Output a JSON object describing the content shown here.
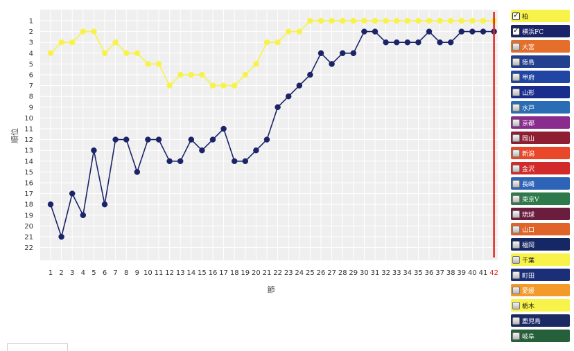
{
  "chart_data": {
    "type": "line",
    "ylabel": "順位",
    "xlabel": "節",
    "x": [
      1,
      2,
      3,
      4,
      5,
      6,
      7,
      8,
      9,
      10,
      11,
      12,
      13,
      14,
      15,
      16,
      17,
      18,
      19,
      20,
      21,
      22,
      23,
      24,
      25,
      26,
      27,
      28,
      29,
      30,
      31,
      32,
      33,
      34,
      35,
      36,
      37,
      38,
      39,
      40,
      41,
      42
    ],
    "ylim": [
      1,
      22
    ],
    "y_inverted": true,
    "current_round": 42,
    "grid": true,
    "series": [
      {
        "name": "柏",
        "color": "#f7f34a",
        "values": [
          4,
          3,
          3,
          2,
          2,
          4,
          3,
          4,
          4,
          5,
          5,
          7,
          6,
          6,
          6,
          7,
          7,
          7,
          6,
          5,
          3,
          3,
          2,
          2,
          1,
          1,
          1,
          1,
          1,
          1,
          1,
          1,
          1,
          1,
          1,
          1,
          1,
          1,
          1,
          1,
          1,
          1
        ]
      },
      {
        "name": "横浜FC",
        "color": "#1b2468",
        "values": [
          18,
          21,
          17,
          19,
          13,
          18,
          12,
          12,
          15,
          12,
          12,
          14,
          14,
          12,
          13,
          12,
          11,
          14,
          14,
          13,
          12,
          9,
          8,
          7,
          6,
          4,
          5,
          4,
          4,
          2,
          2,
          3,
          3,
          3,
          3,
          2,
          3,
          3,
          2,
          2,
          2,
          2
        ]
      }
    ]
  },
  "legend": [
    {
      "label": "柏",
      "bg": "#f7f34a",
      "fg": "#111111",
      "checked": true
    },
    {
      "label": "横浜FC",
      "bg": "#1b2468",
      "fg": "#ffffff",
      "checked": true
    },
    {
      "label": "大宮",
      "bg": "#e56f2a",
      "fg": "#ffffff",
      "checked": false
    },
    {
      "label": "徳島",
      "bg": "#23408e",
      "fg": "#ffffff",
      "checked": false
    },
    {
      "label": "甲府",
      "bg": "#2045a2",
      "fg": "#ffffff",
      "checked": false
    },
    {
      "label": "山形",
      "bg": "#1a2c8c",
      "fg": "#ffffff",
      "checked": false
    },
    {
      "label": "水戸",
      "bg": "#2a6db4",
      "fg": "#ffffff",
      "checked": false
    },
    {
      "label": "京都",
      "bg": "#8a2c8e",
      "fg": "#ffffff",
      "checked": false
    },
    {
      "label": "岡山",
      "bg": "#8e1f33",
      "fg": "#ffffff",
      "checked": false
    },
    {
      "label": "新潟",
      "bg": "#e8472a",
      "fg": "#ffffff",
      "checked": false
    },
    {
      "label": "金沢",
      "bg": "#d22a2a",
      "fg": "#ffffff",
      "checked": false
    },
    {
      "label": "長崎",
      "bg": "#2e64b7",
      "fg": "#ffffff",
      "checked": false
    },
    {
      "label": "東京V",
      "bg": "#2e7a4a",
      "fg": "#ffffff",
      "checked": false
    },
    {
      "label": "琉球",
      "bg": "#6a1d3c",
      "fg": "#ffffff",
      "checked": false
    },
    {
      "label": "山口",
      "bg": "#e0642a",
      "fg": "#ffffff",
      "checked": false
    },
    {
      "label": "福岡",
      "bg": "#152865",
      "fg": "#ffffff",
      "checked": false
    },
    {
      "label": "千葉",
      "bg": "#f7f34a",
      "fg": "#111111",
      "checked": false
    },
    {
      "label": "町田",
      "bg": "#1a2f78",
      "fg": "#ffffff",
      "checked": false
    },
    {
      "label": "愛媛",
      "bg": "#f39a2a",
      "fg": "#ffffff",
      "checked": false
    },
    {
      "label": "栃木",
      "bg": "#f7f34a",
      "fg": "#111111",
      "checked": false
    },
    {
      "label": "鹿児島",
      "bg": "#1b2a63",
      "fg": "#ffffff",
      "checked": false
    },
    {
      "label": "岐阜",
      "bg": "#26603a",
      "fg": "#ffffff",
      "checked": false
    }
  ]
}
